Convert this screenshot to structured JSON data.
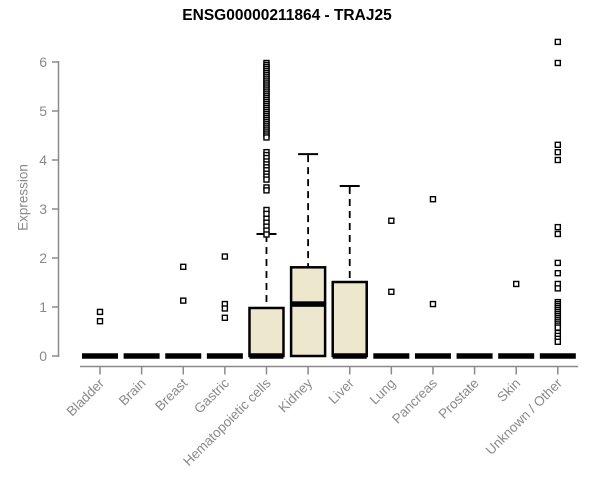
{
  "chart_data": {
    "type": "boxplot",
    "title": "ENSG00000211864 - TRAJ25",
    "ylabel": "Expression",
    "xlabel": "",
    "ylim": [
      0,
      6.5
    ],
    "yticks": [
      0,
      1,
      2,
      3,
      4,
      5,
      6
    ],
    "grid": false,
    "legend": "none",
    "colors": {
      "box_fill": "#EDE8CD",
      "box_stroke": "#000000",
      "median": "#000000",
      "outlier_fill": "#FFFFFF",
      "axis": "#8A8A8A",
      "tick_label": "#8A8A8A",
      "title": "#000000",
      "background": "#FFFFFF"
    },
    "categories": [
      "Bladder",
      "Brain",
      "Breast",
      "Gastric",
      "Hematopoietic cells",
      "Kidney",
      "Liver",
      "Lung",
      "Pancreas",
      "Prostate",
      "Skin",
      "Unknown / Other"
    ],
    "series": [
      {
        "name": "Bladder",
        "min": 0,
        "q1": 0,
        "median": 0,
        "q3": 0,
        "whisker_high": 0,
        "outliers": [
          0.9,
          0.71
        ]
      },
      {
        "name": "Brain",
        "min": 0,
        "q1": 0,
        "median": 0,
        "q3": 0,
        "whisker_high": 0,
        "outliers": []
      },
      {
        "name": "Breast",
        "min": 0,
        "q1": 0,
        "median": 0,
        "q3": 0,
        "whisker_high": 0,
        "outliers": [
          1.82,
          1.13
        ]
      },
      {
        "name": "Gastric",
        "min": 0,
        "q1": 0,
        "median": 0,
        "q3": 0,
        "whisker_high": 0,
        "outliers": [
          2.03,
          1.06,
          0.97,
          0.78
        ]
      },
      {
        "name": "Hematopoietic cells",
        "min": 0,
        "q1": 0,
        "median": 0,
        "q3": 0.98,
        "whisker_high": 2.49,
        "outliers": [
          5.98,
          5.94,
          5.9,
          5.86,
          5.82,
          5.78,
          5.74,
          5.7,
          5.66,
          5.62,
          5.58,
          5.54,
          5.5,
          5.46,
          5.42,
          5.38,
          5.34,
          5.3,
          5.26,
          5.22,
          5.18,
          5.14,
          5.1,
          5.06,
          5.02,
          4.98,
          4.94,
          4.9,
          4.86,
          4.82,
          4.78,
          4.74,
          4.7,
          4.66,
          4.62,
          4.58,
          4.54,
          4.5,
          4.46,
          4.16,
          4.1,
          4.04,
          3.97,
          3.91,
          3.85,
          3.79,
          3.72,
          3.66,
          3.6,
          3.44,
          3.38,
          2.98,
          2.9,
          2.8,
          2.72,
          2.64,
          2.56,
          2.48
        ]
      },
      {
        "name": "Kidney",
        "min": 0,
        "q1": 0,
        "median": 1.06,
        "q3": 1.81,
        "whisker_high": 4.12,
        "outliers": []
      },
      {
        "name": "Liver",
        "min": 0,
        "q1": 0,
        "median": 0,
        "q3": 1.51,
        "whisker_high": 3.47,
        "outliers": []
      },
      {
        "name": "Lung",
        "min": 0,
        "q1": 0,
        "median": 0,
        "q3": 0,
        "whisker_high": 0,
        "outliers": [
          2.76,
          1.31
        ]
      },
      {
        "name": "Pancreas",
        "min": 0,
        "q1": 0,
        "median": 0,
        "q3": 0,
        "whisker_high": 0,
        "outliers": [
          3.2,
          1.06
        ]
      },
      {
        "name": "Prostate",
        "min": 0,
        "q1": 0,
        "median": 0,
        "q3": 0,
        "whisker_high": 0,
        "outliers": []
      },
      {
        "name": "Skin",
        "min": 0,
        "q1": 0,
        "median": 0,
        "q3": 0,
        "whisker_high": 0,
        "outliers": [
          1.47
        ]
      },
      {
        "name": "Unknown / Other",
        "min": 0,
        "q1": 0,
        "median": 0,
        "q3": 0,
        "whisker_high": 0,
        "outliers": [
          6.41,
          5.98,
          4.31,
          4.16,
          4.0,
          2.63,
          2.49,
          1.9,
          1.69,
          1.47,
          1.38,
          1.1,
          1.06,
          1.02,
          0.98,
          0.94,
          0.9,
          0.86,
          0.82,
          0.78,
          0.74,
          0.7,
          0.66,
          0.62,
          0.58,
          0.47,
          0.41,
          0.35,
          0.29
        ]
      }
    ]
  }
}
